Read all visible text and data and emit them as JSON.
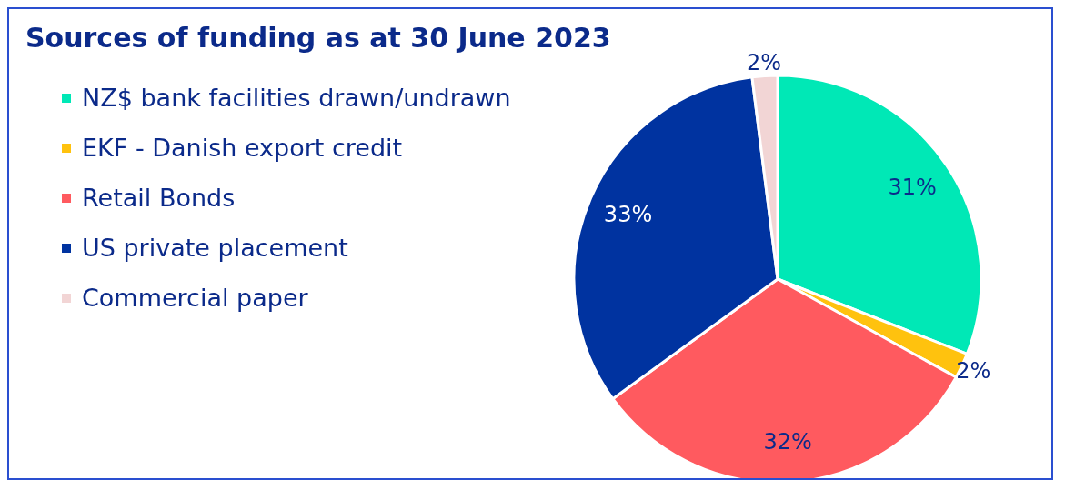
{
  "chart_data": {
    "type": "pie",
    "title": "Sources of funding as at 30 June 2023",
    "categories": [
      "NZ$ bank facilities drawn/undrawn",
      "EKF - Danish export credit",
      "Retail Bonds",
      "US private placement",
      "Commercial paper"
    ],
    "values": [
      31,
      2,
      32,
      33,
      2
    ],
    "colors": [
      "#00e8b6",
      "#ffc20e",
      "#ff5a5f",
      "#0033a0",
      "#f2d5d5"
    ],
    "value_labels": [
      "31%",
      "2%",
      "32%",
      "33%",
      "2%"
    ],
    "legend": "left"
  }
}
